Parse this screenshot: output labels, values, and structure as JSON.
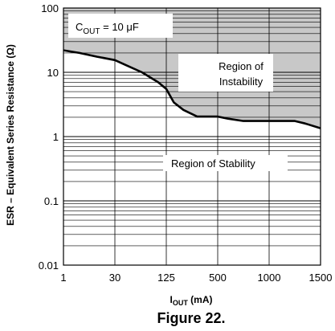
{
  "chart_data": {
    "type": "area",
    "title": "",
    "xlabel": {
      "base": "I",
      "sub": "OUT",
      "rest": " (mA)"
    },
    "ylabel": "ESR – Equivalent Series Resistance (Ω)",
    "x_ticks": [
      "1",
      "30",
      "125",
      "500",
      "1000",
      "1500"
    ],
    "y_ticks": [
      "100",
      "10",
      "1",
      "0.1",
      "0.01"
    ],
    "yscale": "log",
    "ylim": [
      0.01,
      100
    ],
    "grid": true,
    "series": [
      {
        "x": [
          "1",
          "10",
          "20",
          "30",
          "50",
          "80",
          "110",
          "125",
          "180",
          "250",
          "350",
          "450",
          "500",
          "600",
          "750",
          "900",
          "1000",
          "1100",
          "1250",
          "1350",
          "1500"
        ],
        "y": [
          22,
          20,
          17.5,
          15.5,
          13,
          10,
          7,
          5.5,
          3.4,
          2.6,
          2.05,
          2.05,
          2.05,
          1.9,
          1.75,
          1.75,
          1.75,
          1.75,
          1.75,
          1.6,
          1.35
        ]
      }
    ],
    "annotations": {
      "cout": {
        "base": "C",
        "sub": "OUT",
        "rest": " = 10 μF"
      },
      "instability_line1": "Region of",
      "instability_line2": "Instability",
      "stability": "Region of Stability"
    },
    "shaded_region": "above curve (instability)",
    "shade_color": "#c8c8c8"
  },
  "figure_caption": "Figure 22."
}
